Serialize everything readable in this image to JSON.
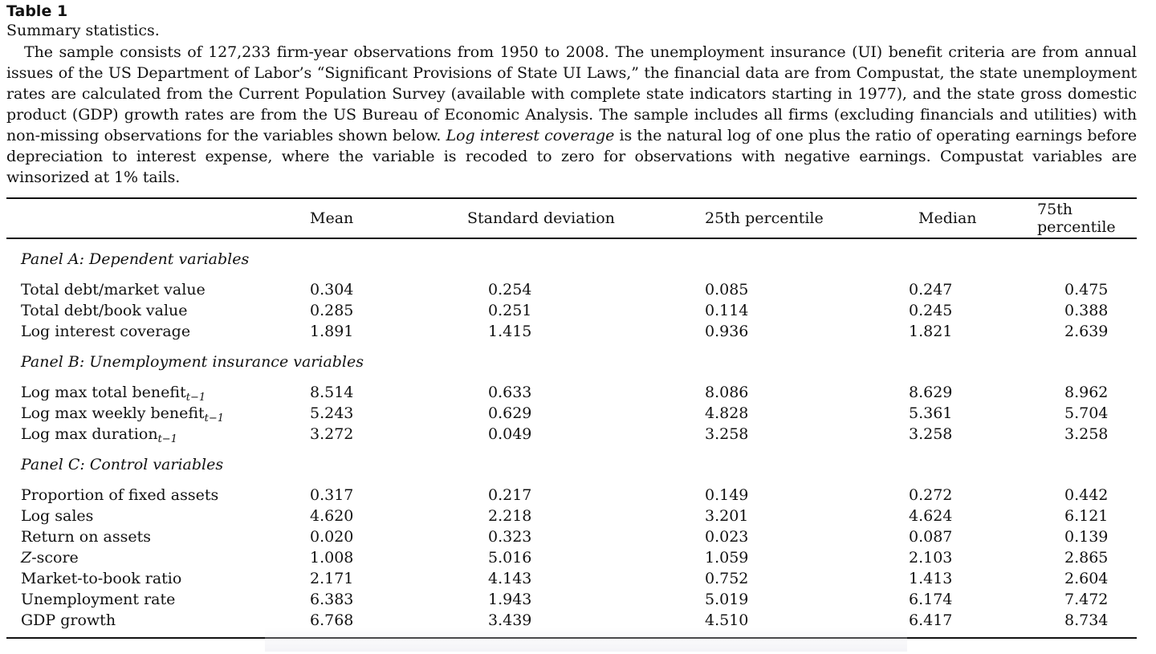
{
  "table_label": "Table 1",
  "title": "Summary statistics.",
  "caption": {
    "part1": "The sample consists of 127,233 firm-year observations from 1950 to 2008. The unemployment insurance (UI) benefit criteria are from annual issues of the US Department of Labor’s “Significant Provisions of State UI Laws,” the financial data are from Compustat, the state unemployment rates are calculated from the Current Population Survey (available with complete state indicators starting in 1977), and the state gross domestic product (GDP) growth rates are from the US Bureau of Economic Analysis. The sample includes all firms (excluding financials and utilities) with non-missing observations for the variables shown below. ",
    "italic": "Log interest coverage",
    "part2": " is the natural log of one plus the ratio of operating earnings before depreciation to interest expense, where the variable is recoded to zero for observations with negative earnings. Compustat variables are winsorized at 1% tails."
  },
  "columns": [
    "",
    "Mean",
    "Standard deviation",
    "25th percentile",
    "Median",
    "75th percentile"
  ],
  "lag_subscript": "t−1",
  "panels": [
    {
      "title": "Panel A: Dependent variables",
      "rows": [
        {
          "label": "Total debt/market value",
          "values": [
            "0.304",
            "0.254",
            "0.085",
            "0.247",
            "0.475"
          ]
        },
        {
          "label": "Total debt/book value",
          "values": [
            "0.285",
            "0.251",
            "0.114",
            "0.245",
            "0.388"
          ]
        },
        {
          "label": "Log interest coverage",
          "values": [
            "1.891",
            "1.415",
            "0.936",
            "1.821",
            "2.639"
          ]
        }
      ]
    },
    {
      "title": "Panel B: Unemployment insurance variables",
      "rows": [
        {
          "label": "Log max total benefit",
          "values": [
            "8.514",
            "0.633",
            "8.086",
            "8.629",
            "8.962"
          ]
        },
        {
          "label": "Log max weekly benefit",
          "values": [
            "5.243",
            "0.629",
            "4.828",
            "5.361",
            "5.704"
          ]
        },
        {
          "label": "Log max duration",
          "values": [
            "3.272",
            "0.049",
            "3.258",
            "3.258",
            "3.258"
          ]
        }
      ]
    },
    {
      "title": "Panel C: Control variables",
      "rows": [
        {
          "label": "Proportion of fixed assets",
          "values": [
            "0.317",
            "0.217",
            "0.149",
            "0.272",
            "0.442"
          ]
        },
        {
          "label": "Log sales",
          "values": [
            "4.620",
            "2.218",
            "3.201",
            "4.624",
            "6.121"
          ]
        },
        {
          "label": "Return on assets",
          "values": [
            "0.020",
            "0.323",
            "0.023",
            "0.087",
            "0.139"
          ]
        },
        {
          "label": "Z",
          "label_rest": "-score",
          "values": [
            "1.008",
            "5.016",
            "1.059",
            "2.103",
            "2.865"
          ]
        },
        {
          "label": "Market-to-book ratio",
          "values": [
            "2.171",
            "4.143",
            "0.752",
            "1.413",
            "2.604"
          ]
        },
        {
          "label": "Unemployment rate",
          "values": [
            "6.383",
            "1.943",
            "5.019",
            "6.174",
            "7.472"
          ]
        },
        {
          "label": "GDP growth",
          "values": [
            "6.768",
            "3.439",
            "4.510",
            "6.417",
            "8.734"
          ]
        }
      ]
    }
  ]
}
